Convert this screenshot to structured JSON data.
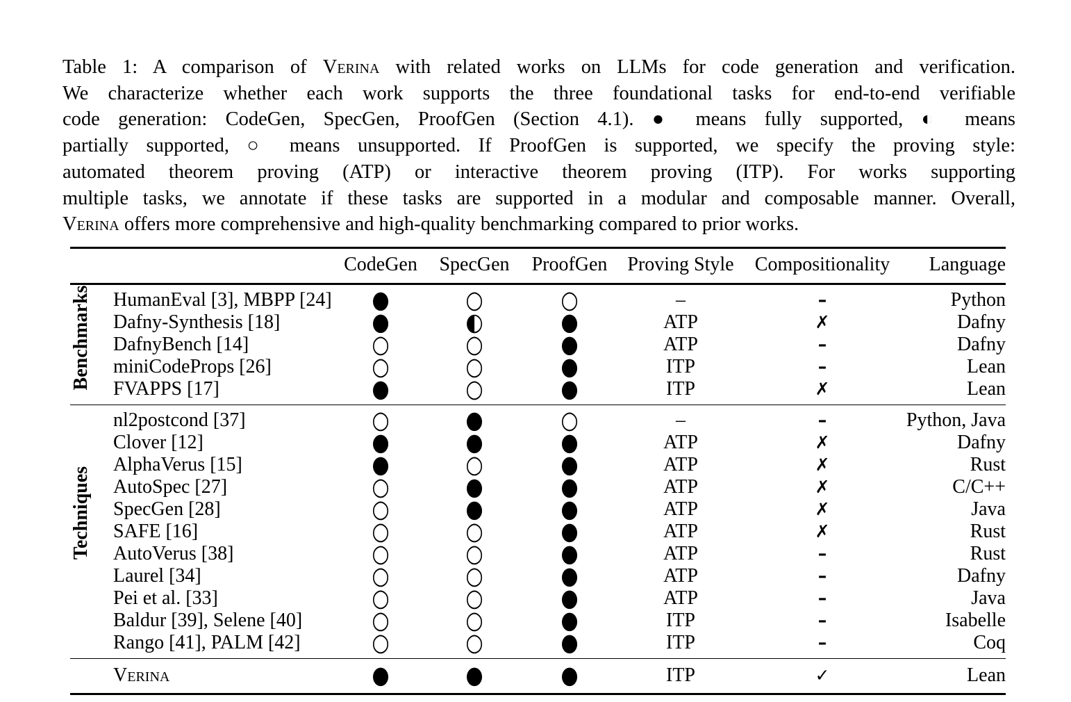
{
  "caption": {
    "lines": [
      {
        "pre": "Table 1: A comparison of ",
        "sc": "Verina",
        "post": " with related works on LLMs for code generation and verification."
      },
      {
        "text": "We characterize whether each work supports the three foundational tasks for end-to-end verifiable"
      },
      {
        "text": "code generation: CodeGen, SpecGen, ProofGen (Section 4.1). ● means fully supported, ◐ means"
      },
      {
        "text": "partially supported, ○ means unsupported. If ProofGen is supported, we specify the proving style:"
      },
      {
        "text": "automated theorem proving (ATP) or interactive theorem proving (ITP). For works supporting"
      },
      {
        "text": "multiple tasks, we annotate if these tasks are supported in a modular and composable manner. Overall,"
      },
      {
        "sc": "Verina",
        "post": " offers more comprehensive and high-quality benchmarking compared to prior works."
      }
    ]
  },
  "table": {
    "headers": [
      "CodeGen",
      "SpecGen",
      "ProofGen",
      "Proving Style",
      "Compositionality",
      "Language"
    ],
    "symbols_legend": {
      "full": "●",
      "partial": "◐",
      "none": "○",
      "no": "✗",
      "yes": "✓",
      "na": "–"
    },
    "sections": [
      {
        "label": "Benchmarks",
        "rows": [
          {
            "name": "HumanEval [3], MBPP [24]",
            "codegen": "●",
            "specgen": "○",
            "proofgen": "○",
            "proving": "–",
            "comp": "–",
            "lang": "Python"
          },
          {
            "name": "Dafny-Synthesis [18]",
            "codegen": "●",
            "specgen": "◐",
            "proofgen": "●",
            "proving": "ATP",
            "comp": "✗",
            "lang": "Dafny"
          },
          {
            "name": "DafnyBench [14]",
            "codegen": "○",
            "specgen": "○",
            "proofgen": "●",
            "proving": "ATP",
            "comp": "–",
            "lang": "Dafny"
          },
          {
            "name": "miniCodeProps [26]",
            "codegen": "○",
            "specgen": "○",
            "proofgen": "●",
            "proving": "ITP",
            "comp": "–",
            "lang": "Lean"
          },
          {
            "name": "FVAPPS [17]",
            "codegen": "●",
            "specgen": "○",
            "proofgen": "●",
            "proving": "ITP",
            "comp": "✗",
            "lang": "Lean"
          }
        ]
      },
      {
        "label": "Techniques",
        "rows": [
          {
            "name": "nl2postcond [37]",
            "codegen": "○",
            "specgen": "●",
            "proofgen": "○",
            "proving": "–",
            "comp": "–",
            "lang": "Python, Java"
          },
          {
            "name": "Clover [12]",
            "codegen": "●",
            "specgen": "●",
            "proofgen": "●",
            "proving": "ATP",
            "comp": "✗",
            "lang": "Dafny"
          },
          {
            "name": "AlphaVerus [15]",
            "codegen": "●",
            "specgen": "○",
            "proofgen": "●",
            "proving": "ATP",
            "comp": "✗",
            "lang": "Rust"
          },
          {
            "name": "AutoSpec [27]",
            "codegen": "○",
            "specgen": "●",
            "proofgen": "●",
            "proving": "ATP",
            "comp": "✗",
            "lang": "C/C++"
          },
          {
            "name": "SpecGen [28]",
            "codegen": "○",
            "specgen": "●",
            "proofgen": "●",
            "proving": "ATP",
            "comp": "✗",
            "lang": "Java"
          },
          {
            "name": "SAFE [16]",
            "codegen": "○",
            "specgen": "○",
            "proofgen": "●",
            "proving": "ATP",
            "comp": "✗",
            "lang": "Rust"
          },
          {
            "name": "AutoVerus [38]",
            "codegen": "○",
            "specgen": "○",
            "proofgen": "●",
            "proving": "ATP",
            "comp": "–",
            "lang": "Rust"
          },
          {
            "name": "Laurel [34]",
            "codegen": "○",
            "specgen": "○",
            "proofgen": "●",
            "proving": "ATP",
            "comp": "–",
            "lang": "Dafny"
          },
          {
            "name": "Pei et al. [33]",
            "codegen": "○",
            "specgen": "○",
            "proofgen": "●",
            "proving": "ATP",
            "comp": "–",
            "lang": "Java"
          },
          {
            "name": "Baldur [39], Selene [40]",
            "codegen": "○",
            "specgen": "○",
            "proofgen": "●",
            "proving": "ITP",
            "comp": "–",
            "lang": "Isabelle"
          },
          {
            "name": "Rango [41], PALM [42]",
            "codegen": "○",
            "specgen": "○",
            "proofgen": "●",
            "proving": "ITP",
            "comp": "–",
            "lang": "Coq"
          }
        ]
      },
      {
        "label": "",
        "rows": [
          {
            "name": "Verina",
            "smallcaps": true,
            "codegen": "●",
            "specgen": "●",
            "proofgen": "●",
            "proving": "ITP",
            "comp": "✓",
            "lang": "Lean"
          }
        ]
      }
    ]
  }
}
